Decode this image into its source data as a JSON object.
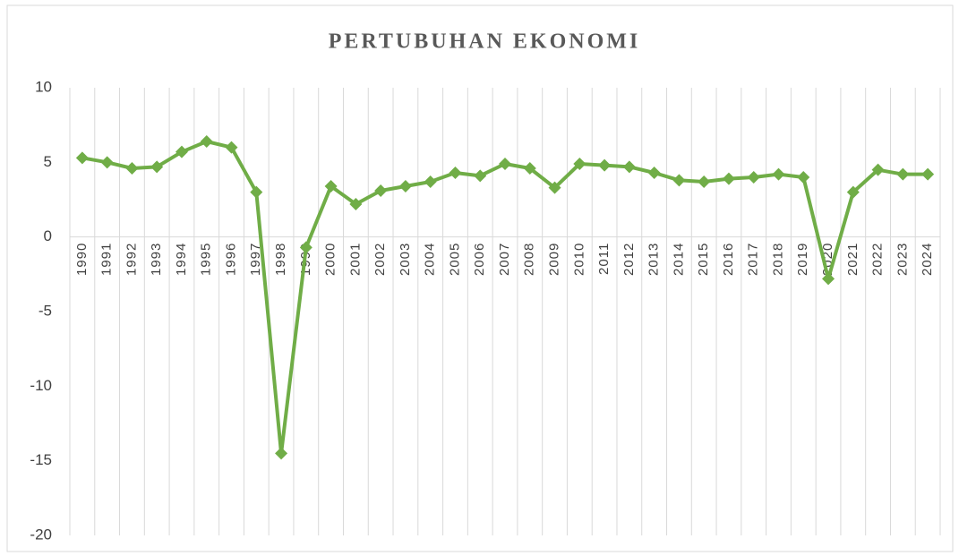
{
  "chart_data": {
    "type": "line",
    "title": "PERTUBUHAN EKONOMI",
    "categories": [
      "1990",
      "1991",
      "1992",
      "1993",
      "1994",
      "1995",
      "1996",
      "1997",
      "1998",
      "1999",
      "2000",
      "2001",
      "2002",
      "2003",
      "2004",
      "2005",
      "2006",
      "2007",
      "2008",
      "2009",
      "2010",
      "2011",
      "2012",
      "2013",
      "2014",
      "2015",
      "2016",
      "2017",
      "2018",
      "2019",
      "2020",
      "2021",
      "2022",
      "2023",
      "2024"
    ],
    "values": [
      5.3,
      5.0,
      4.6,
      4.7,
      5.7,
      6.4,
      6.0,
      3.0,
      -14.5,
      -0.7,
      3.4,
      2.2,
      3.1,
      3.4,
      3.7,
      4.3,
      4.1,
      4.9,
      4.6,
      3.3,
      4.9,
      4.8,
      4.7,
      4.3,
      3.8,
      3.7,
      3.9,
      4.0,
      4.2,
      4.0,
      -2.8,
      3.0,
      4.5,
      4.2,
      4.2
    ],
    "color": "#70ad47",
    "marker": "diamond",
    "ylim": [
      -20,
      10
    ],
    "yticks": [
      -20,
      -15,
      -10,
      -5,
      0,
      5,
      10
    ],
    "grid": true
  }
}
